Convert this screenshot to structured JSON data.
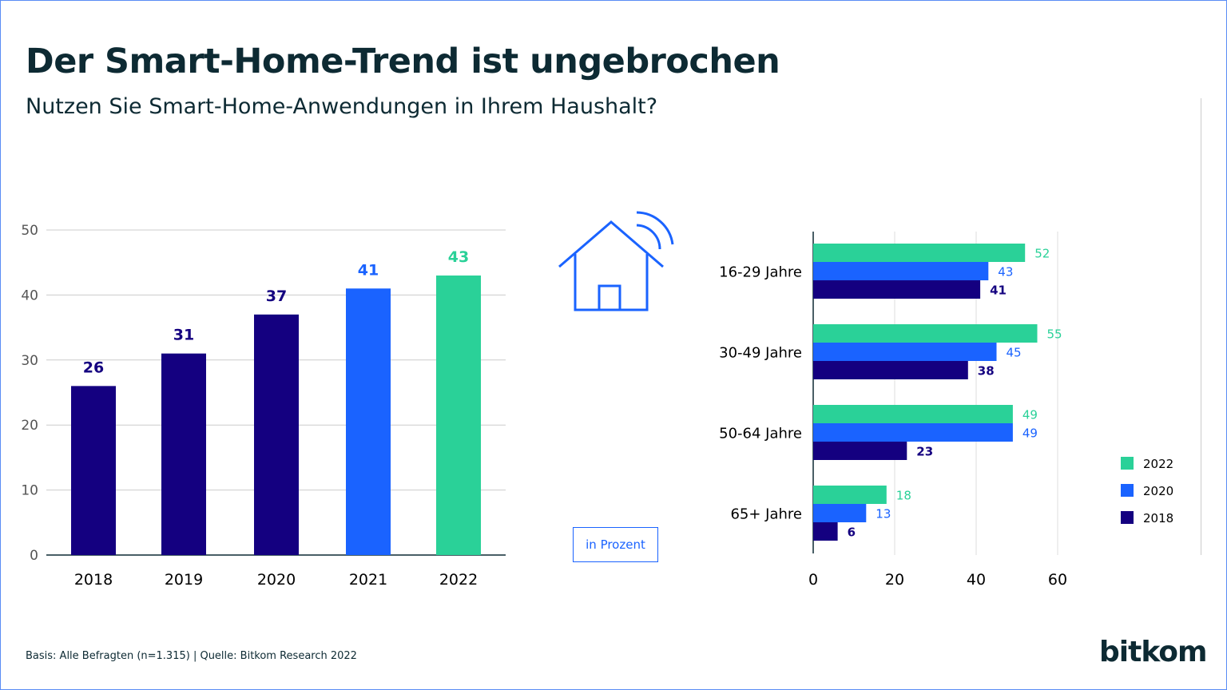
{
  "title": "Der Smart-Home-Trend ist ungebrochen",
  "subtitle": "Nutzen Sie Smart-Home-Anwendungen in Ihrem Haushalt?",
  "unit_label": "in Prozent",
  "footer": "Basis: Alle Befragten (n=1.315) | Quelle: Bitkom Research 2022",
  "logo": "bitkom",
  "icons": [
    "house-wifi-icon"
  ],
  "colors": {
    "navy": "#140080",
    "blue": "#1a63ff",
    "green": "#2ad198",
    "text": "#0d2a33"
  },
  "chart_data": [
    {
      "type": "bar",
      "orientation": "vertical",
      "categories": [
        "2018",
        "2019",
        "2020",
        "2021",
        "2022"
      ],
      "values": [
        26,
        31,
        37,
        41,
        43
      ],
      "bar_colors": [
        "#140080",
        "#140080",
        "#140080",
        "#1a63ff",
        "#2ad198"
      ],
      "yticks": [
        "0",
        "10",
        "20",
        "30",
        "40",
        "50"
      ],
      "ylim": [
        0,
        50
      ],
      "grid": true
    },
    {
      "type": "bar",
      "orientation": "horizontal",
      "categories": [
        "16-29 Jahre",
        "30-49 Jahre",
        "50-64 Jahre",
        "65+ Jahre"
      ],
      "series": [
        {
          "name": "2022",
          "color": "#2ad198",
          "values": [
            52,
            55,
            49,
            18
          ]
        },
        {
          "name": "2020",
          "color": "#1a63ff",
          "values": [
            43,
            45,
            49,
            13
          ]
        },
        {
          "name": "2018",
          "color": "#140080",
          "values": [
            41,
            38,
            23,
            6
          ]
        }
      ],
      "xticks": [
        "0",
        "20",
        "40",
        "60"
      ],
      "xlim": [
        0,
        60
      ],
      "grid": true,
      "legend": "bottom-right"
    }
  ]
}
